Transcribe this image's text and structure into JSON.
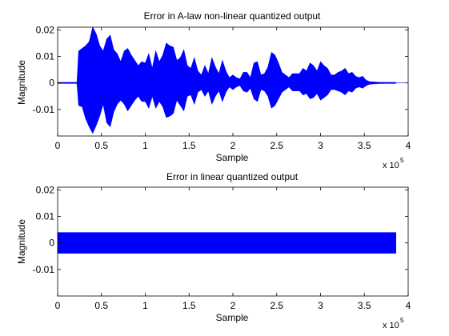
{
  "chart_data": [
    {
      "type": "line",
      "title": "Error in A-law non-linear quantized output",
      "xlabel": "Sample",
      "ylabel": "Magnitude",
      "xlim": [
        0,
        400000
      ],
      "ylim": [
        -0.02,
        0.021
      ],
      "x_ticks": [
        0,
        50000,
        100000,
        150000,
        200000,
        250000,
        300000,
        350000,
        400000
      ],
      "x_tick_labels": [
        "0",
        "0.5",
        "1",
        "1.5",
        "2",
        "2.5",
        "3",
        "3.5",
        "4"
      ],
      "x_multiplier_base": "x 10",
      "x_multiplier_exp": "5",
      "y_ticks": [
        -0.01,
        0,
        0.01,
        0.02
      ],
      "y_tick_labels": [
        "-0.01",
        "0",
        "0.01",
        "0.02"
      ],
      "series_color": "#0000ff",
      "envelope": {
        "x": [
          0,
          22000,
          24000,
          28000,
          32000,
          36000,
          40000,
          44000,
          48000,
          52000,
          56000,
          60000,
          64000,
          68000,
          72000,
          76000,
          80000,
          84000,
          88000,
          92000,
          96000,
          100000,
          104000,
          108000,
          112000,
          116000,
          120000,
          124000,
          128000,
          132000,
          136000,
          140000,
          144000,
          148000,
          152000,
          156000,
          160000,
          164000,
          168000,
          172000,
          176000,
          180000,
          184000,
          188000,
          192000,
          196000,
          200000,
          204000,
          208000,
          212000,
          216000,
          220000,
          224000,
          228000,
          232000,
          236000,
          240000,
          244000,
          248000,
          252000,
          256000,
          260000,
          264000,
          268000,
          272000,
          276000,
          280000,
          284000,
          288000,
          292000,
          296000,
          300000,
          304000,
          308000,
          312000,
          316000,
          320000,
          324000,
          328000,
          332000,
          336000,
          340000,
          344000,
          348000,
          352000,
          356000,
          360000,
          364000,
          368000,
          372000,
          376000,
          386000,
          400000
        ],
        "upper": [
          0,
          0,
          0.012,
          0.013,
          0.014,
          0.0155,
          0.021,
          0.0185,
          0.014,
          0.012,
          0.0165,
          0.018,
          0.0125,
          0.011,
          0.008,
          0.012,
          0.013,
          0.0105,
          0.0085,
          0.0065,
          0.008,
          0.0075,
          0.011,
          0.0055,
          0.012,
          0.008,
          0.0105,
          0.015,
          0.014,
          0.0135,
          0.0085,
          0.0095,
          0.0125,
          0.0065,
          0.0055,
          0.0095,
          0.0045,
          0.003,
          0.0065,
          0.0035,
          0.0095,
          0.006,
          0.0035,
          0.0085,
          0.0045,
          0.002,
          0.003,
          0.002,
          0.0015,
          0.004,
          0.004,
          0.002,
          0.0075,
          0.008,
          0.003,
          0.0035,
          0.006,
          0.0115,
          0.0105,
          0.0075,
          0.004,
          0.003,
          0.002,
          0.0035,
          0.0035,
          0.0035,
          0.0055,
          0.0045,
          0.0075,
          0.0065,
          0.0045,
          0.008,
          0.0065,
          0.0055,
          0.003,
          0.003,
          0.004,
          0.0045,
          0.0055,
          0.0035,
          0.004,
          0.0025,
          0.002,
          0.0025,
          0.001,
          0.0005,
          0.0004,
          0.0003,
          0.0002,
          0.0002,
          0,
          0,
          0
        ],
        "lower": [
          0,
          0,
          -0.0085,
          -0.009,
          -0.0135,
          -0.0165,
          -0.019,
          -0.016,
          -0.0125,
          -0.008,
          -0.015,
          -0.0165,
          -0.011,
          -0.008,
          -0.0065,
          -0.008,
          -0.0105,
          -0.0085,
          -0.0065,
          -0.005,
          -0.007,
          -0.007,
          -0.0095,
          -0.005,
          -0.0095,
          -0.007,
          -0.009,
          -0.013,
          -0.0125,
          -0.0115,
          -0.0065,
          -0.0085,
          -0.0105,
          -0.005,
          -0.0045,
          -0.008,
          -0.0035,
          -0.0025,
          -0.005,
          -0.003,
          -0.008,
          -0.005,
          -0.003,
          -0.007,
          -0.0035,
          -0.0015,
          -0.0025,
          -0.0015,
          -0.001,
          -0.003,
          -0.0035,
          -0.002,
          -0.006,
          -0.007,
          -0.0025,
          -0.003,
          -0.005,
          -0.0095,
          -0.0085,
          -0.006,
          -0.0035,
          -0.0025,
          -0.0015,
          -0.003,
          -0.003,
          -0.003,
          -0.0045,
          -0.004,
          -0.006,
          -0.0055,
          -0.004,
          -0.0065,
          -0.0055,
          -0.0045,
          -0.0025,
          -0.0025,
          -0.003,
          -0.0035,
          -0.0045,
          -0.003,
          -0.0035,
          -0.002,
          -0.0015,
          -0.002,
          -0.001,
          -0.0005,
          -0.0004,
          -0.0003,
          -0.0002,
          -0.0002,
          0,
          0,
          0
        ]
      }
    },
    {
      "type": "line",
      "title": "Error in linear quantized output",
      "xlabel": "Sample",
      "ylabel": "Magnitude",
      "xlim": [
        0,
        400000
      ],
      "ylim": [
        -0.02,
        0.021
      ],
      "x_ticks": [
        0,
        50000,
        100000,
        150000,
        200000,
        250000,
        300000,
        350000,
        400000
      ],
      "x_tick_labels": [
        "0",
        "0.5",
        "1",
        "1.5",
        "2",
        "2.5",
        "3",
        "3.5",
        "4"
      ],
      "x_multiplier_base": "x 10",
      "x_multiplier_exp": "5",
      "y_ticks": [
        -0.01,
        0,
        0.01,
        0.02
      ],
      "y_tick_labels": [
        "-0.01",
        "0",
        "0.01",
        "0.02"
      ],
      "series_color": "#0000ff",
      "envelope": {
        "x": [
          0,
          386000
        ],
        "upper": [
          0.0039,
          0.0039
        ],
        "lower": [
          -0.0039,
          -0.0039
        ]
      }
    }
  ]
}
